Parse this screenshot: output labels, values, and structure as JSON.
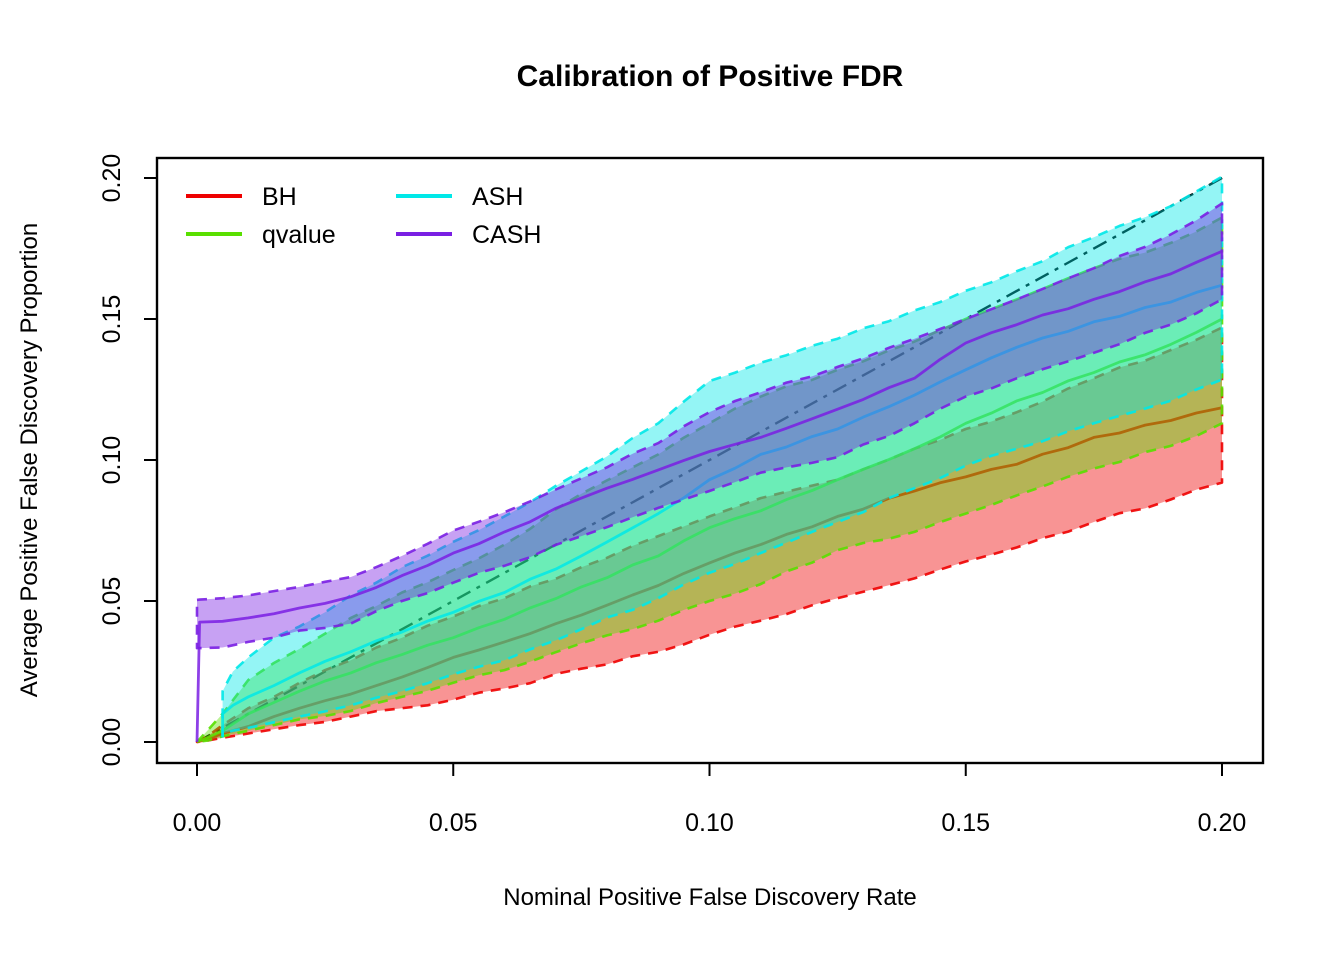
{
  "chart_data": {
    "type": "area",
    "title": "Calibration of Positive FDR",
    "xlabel": "Nominal Positive False Discovery Rate",
    "ylabel": "Average Positive False Discovery Proportion",
    "xlim": [
      0,
      0.2
    ],
    "ylim": [
      0,
      0.2
    ],
    "grid": false,
    "legend_position": "top-left-two-columns",
    "x_ticks": {
      "values": [
        0,
        0.05,
        0.1,
        0.15,
        0.2
      ],
      "labels": [
        "0.00",
        "0.05",
        "0.10",
        "0.15",
        "0.20"
      ]
    },
    "y_ticks": {
      "values": [
        0,
        0.05,
        0.1,
        0.15,
        0.2
      ],
      "labels": [
        "0.00",
        "0.05",
        "0.10",
        "0.15",
        "0.20"
      ]
    },
    "reference_line": {
      "name": "identity-diagonal",
      "description": "y = x dash-dot line",
      "color": "#000000",
      "from": [
        0,
        0
      ],
      "to": [
        0.201,
        0.201
      ]
    },
    "style": {
      "band_fill_opacity": 0.42,
      "border_dash": "10 8",
      "border_width": 2.6,
      "border_opacity": 0.9,
      "mean_width": 2.8,
      "mean_opacity": 0.85,
      "diagonal_dash": "15 7 4 7",
      "diagonal_width": 2.4
    },
    "series": [
      {
        "name": "BH",
        "color": "#EE0000",
        "x": [
          0,
          0.002,
          0.005,
          0.01,
          0.015,
          0.02,
          0.03,
          0.04,
          0.05,
          0.06,
          0.075,
          0.09,
          0.1,
          0.11,
          0.125,
          0.14,
          0.15,
          0.16,
          0.175,
          0.19,
          0.2
        ],
        "mean": [
          0,
          0.001,
          0.003,
          0.0055,
          0.009,
          0.012,
          0.017,
          0.023,
          0.03,
          0.0355,
          0.045,
          0.0555,
          0.0635,
          0.07,
          0.08,
          0.089,
          0.094,
          0.0985,
          0.108,
          0.114,
          0.1185
        ],
        "upper": [
          0,
          0.002,
          0.006,
          0.012,
          0.016,
          0.021,
          0.029,
          0.037,
          0.0445,
          0.051,
          0.062,
          0.073,
          0.08,
          0.0865,
          0.093,
          0.104,
          0.111,
          0.117,
          0.129,
          0.139,
          0.147
        ],
        "lower": [
          0,
          0.0005,
          0.0015,
          0.003,
          0.0045,
          0.006,
          0.009,
          0.012,
          0.015,
          0.019,
          0.026,
          0.032,
          0.038,
          0.043,
          0.051,
          0.058,
          0.064,
          0.069,
          0.078,
          0.086,
          0.092
        ]
      },
      {
        "name": "qvalue",
        "color": "#59DF00",
        "x": [
          0,
          0.002,
          0.005,
          0.01,
          0.015,
          0.02,
          0.03,
          0.04,
          0.05,
          0.06,
          0.075,
          0.09,
          0.1,
          0.11,
          0.125,
          0.14,
          0.15,
          0.16,
          0.175,
          0.19,
          0.2
        ],
        "mean": [
          0,
          0.0015,
          0.004,
          0.01,
          0.014,
          0.018,
          0.0245,
          0.031,
          0.037,
          0.0435,
          0.055,
          0.066,
          0.076,
          0.082,
          0.093,
          0.104,
          0.113,
          0.121,
          0.131,
          0.141,
          0.15
        ],
        "upper": [
          0,
          0.004,
          0.01,
          0.022,
          0.028,
          0.033,
          0.044,
          0.053,
          0.061,
          0.07,
          0.088,
          0.102,
          0.113,
          0.1225,
          0.132,
          0.142,
          0.15,
          0.157,
          0.168,
          0.177,
          0.186
        ],
        "lower": [
          0,
          0.0005,
          0.002,
          0.004,
          0.006,
          0.008,
          0.011,
          0.016,
          0.021,
          0.0255,
          0.035,
          0.043,
          0.05,
          0.056,
          0.068,
          0.0745,
          0.081,
          0.0875,
          0.097,
          0.105,
          0.113
        ]
      },
      {
        "name": "ASH",
        "color": "#00E8E8",
        "x": [
          0.005,
          0.005,
          0.007,
          0.01,
          0.015,
          0.02,
          0.03,
          0.04,
          0.05,
          0.06,
          0.075,
          0.09,
          0.1,
          0.11,
          0.125,
          0.14,
          0.15,
          0.16,
          0.175,
          0.19,
          0.2
        ],
        "mean": [
          0.002,
          0.01,
          0.013,
          0.016,
          0.02,
          0.0245,
          0.032,
          0.039,
          0.046,
          0.053,
          0.066,
          0.081,
          0.093,
          0.102,
          0.111,
          0.123,
          0.132,
          0.14,
          0.149,
          0.156,
          0.162
        ],
        "upper": [
          0.002,
          0.018,
          0.025,
          0.03,
          0.037,
          0.041,
          0.052,
          0.062,
          0.071,
          0.08,
          0.096,
          0.113,
          0.128,
          0.1345,
          0.143,
          0.153,
          0.16,
          0.167,
          0.179,
          0.19,
          0.2005
        ],
        "lower": [
          0.002,
          0.003,
          0.004,
          0.005,
          0.007,
          0.009,
          0.013,
          0.018,
          0.024,
          0.029,
          0.04,
          0.051,
          0.06,
          0.067,
          0.078,
          0.09,
          0.098,
          0.104,
          0.113,
          0.121,
          0.1285
        ]
      },
      {
        "name": "CASH",
        "color": "#7A1FE3",
        "x": [
          0,
          0.0005,
          0.005,
          0.01,
          0.015,
          0.02,
          0.03,
          0.04,
          0.05,
          0.06,
          0.075,
          0.09,
          0.1,
          0.11,
          0.125,
          0.14,
          0.15,
          0.16,
          0.175,
          0.19,
          0.2
        ],
        "mean": [
          0,
          0.0425,
          0.0428,
          0.044,
          0.0455,
          0.0475,
          0.0515,
          0.059,
          0.067,
          0.0745,
          0.0865,
          0.0965,
          0.103,
          0.108,
          0.118,
          0.129,
          0.1415,
          0.148,
          0.157,
          0.166,
          0.174
        ],
        "upper": [
          0.0504,
          0.0505,
          0.051,
          0.052,
          0.0535,
          0.055,
          0.0585,
          0.066,
          0.075,
          0.0815,
          0.0935,
          0.106,
          0.117,
          0.124,
          0.133,
          0.143,
          0.15,
          0.157,
          0.168,
          0.18,
          0.191
        ],
        "lower": [
          0.0333,
          0.0333,
          0.0335,
          0.0355,
          0.037,
          0.0395,
          0.042,
          0.05,
          0.0565,
          0.0625,
          0.073,
          0.083,
          0.089,
          0.0955,
          0.101,
          0.113,
          0.1225,
          0.129,
          0.138,
          0.148,
          0.157
        ]
      }
    ],
    "legend": {
      "items": [
        {
          "label": "BH",
          "color": "#EE0000"
        },
        {
          "label": "qvalue",
          "color": "#59DF00"
        },
        {
          "label": "ASH",
          "color": "#00E8E8"
        },
        {
          "label": "CASH",
          "color": "#7A1FE3"
        }
      ]
    }
  }
}
